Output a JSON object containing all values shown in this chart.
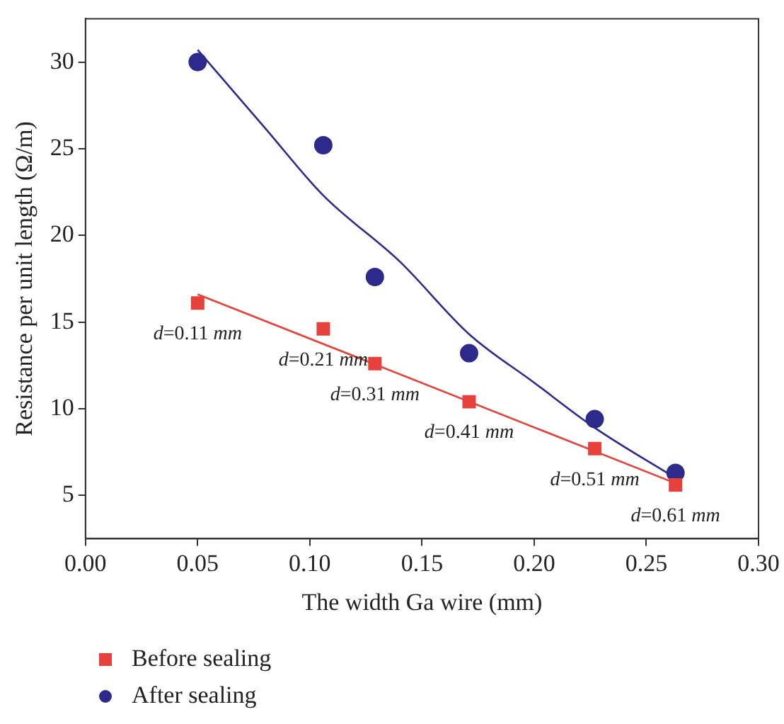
{
  "chart_data": {
    "type": "scatter",
    "xlabel": "The width Ga wire (mm)",
    "ylabel": "Resistance per unit length (Ω/m)",
    "xlim": [
      0,
      0.3
    ],
    "ylim": [
      2.5,
      32.5
    ],
    "xticks": [
      {
        "value": 0,
        "label": "0.00"
      },
      {
        "value": 0.05,
        "label": "0.05"
      },
      {
        "value": 0.1,
        "label": "0.10"
      },
      {
        "value": 0.15,
        "label": "0.15"
      },
      {
        "value": 0.2,
        "label": "0.20"
      },
      {
        "value": 0.25,
        "label": "0.25"
      },
      {
        "value": 0.3,
        "label": "0.30"
      }
    ],
    "yticks": [
      5,
      10,
      15,
      20,
      25,
      30
    ],
    "grid": false,
    "legend": "bottom left",
    "series": [
      {
        "name": "Before sealing",
        "color": "#e8403a",
        "marker": "square",
        "x": [
          0.05,
          0.106,
          0.129,
          0.171,
          0.227,
          0.263
        ],
        "values": [
          16.1,
          14.6,
          12.6,
          10.4,
          7.7,
          5.6
        ]
      },
      {
        "name": "After sealing",
        "color": "#2e2a8c",
        "marker": "circle",
        "x": [
          0.05,
          0.106,
          0.129,
          0.171,
          0.227,
          0.263
        ],
        "values": [
          30.0,
          25.2,
          17.6,
          13.2,
          9.4,
          6.3
        ]
      },
      {
        "type": "line",
        "color": "#e8403a",
        "marker": "none",
        "line_style": "solid",
        "x": [
          0.05,
          0.263
        ],
        "values": [
          16.6,
          5.7
        ]
      },
      {
        "type": "line",
        "color": "#2e2a8c",
        "marker": "none",
        "line_style": "solid",
        "x": [
          0.05,
          0.08,
          0.106,
          0.14,
          0.171,
          0.2,
          0.227,
          0.263
        ],
        "values": [
          30.7,
          26.2,
          22.3,
          18.5,
          14.3,
          11.5,
          8.9,
          6.0
        ]
      }
    ],
    "annotations": [
      {
        "text": "d=0.11 mm",
        "x": 0.05,
        "y": 16.1
      },
      {
        "text": "d=0.21 mm",
        "x": 0.106,
        "y": 14.6
      },
      {
        "text": "d=0.31 mm",
        "x": 0.129,
        "y": 12.6
      },
      {
        "text": "d=0.41 mm",
        "x": 0.171,
        "y": 10.4
      },
      {
        "text": "d=0.51 mm",
        "x": 0.227,
        "y": 7.7
      },
      {
        "text": "d=0.61 mm",
        "x": 0.263,
        "y": 5.6
      }
    ]
  }
}
